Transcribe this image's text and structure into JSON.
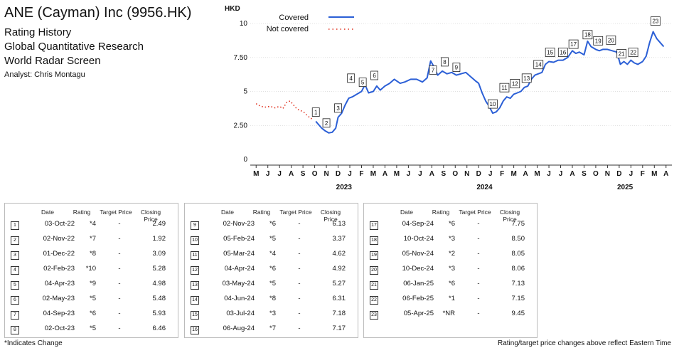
{
  "header": {
    "company": "ANE (Cayman) Inc (9956.HK)",
    "lines": [
      "Rating History",
      "Global Quantitative Research",
      "World Radar Screen"
    ],
    "analyst": "Analyst: Chris Montagu"
  },
  "chart_data": {
    "type": "line",
    "ylabel": "HKD",
    "ylim": [
      0,
      11
    ],
    "yticks": [
      {
        "value": 0,
        "label": "0"
      },
      {
        "value": 2.5,
        "label": "2.50"
      },
      {
        "value": 5,
        "label": "5"
      },
      {
        "value": 7.5,
        "label": "7.50"
      },
      {
        "value": 10,
        "label": "10"
      }
    ],
    "months": [
      "M",
      "J",
      "J",
      "A",
      "S",
      "O",
      "N",
      "D",
      "J",
      "F",
      "M",
      "A",
      "M",
      "J",
      "J",
      "A",
      "S",
      "O",
      "N",
      "D",
      "J",
      "F",
      "M",
      "A",
      "M",
      "J",
      "J",
      "A",
      "S",
      "O",
      "N",
      "D",
      "J",
      "F",
      "M",
      "A"
    ],
    "year_labels": [
      {
        "label": "2023",
        "month_index": 7.5
      },
      {
        "label": "2024",
        "month_index": 19.5
      },
      {
        "label": "2025",
        "month_index": 31.5
      }
    ],
    "colors": {
      "covered": "#2b5fd6",
      "not_covered": "#e0301e"
    },
    "legend": {
      "position": "top-center",
      "items": [
        {
          "name": "Covered",
          "style": "solid"
        },
        {
          "name": "Not covered",
          "style": "dotted"
        }
      ]
    },
    "series": [
      {
        "name": "Not covered",
        "points": [
          [
            0,
            4.1
          ],
          [
            0.4,
            3.9
          ],
          [
            0.8,
            3.85
          ],
          [
            1.2,
            3.9
          ],
          [
            1.6,
            3.8
          ],
          [
            2,
            3.9
          ],
          [
            2.3,
            3.75
          ],
          [
            2.6,
            4.2
          ],
          [
            2.9,
            4.3
          ],
          [
            3.2,
            4.0
          ],
          [
            3.5,
            3.7
          ],
          [
            3.8,
            3.6
          ],
          [
            4.1,
            3.45
          ],
          [
            4.4,
            3.2
          ],
          [
            4.7,
            3.0
          ],
          [
            4.9,
            3.2
          ],
          [
            5.1,
            3.2
          ]
        ]
      },
      {
        "name": "Covered",
        "points": [
          [
            5.1,
            2.8
          ],
          [
            5.3,
            2.6
          ],
          [
            5.6,
            2.3
          ],
          [
            5.9,
            2.1
          ],
          [
            6.2,
            1.95
          ],
          [
            6.5,
            2.0
          ],
          [
            6.8,
            2.3
          ],
          [
            7.0,
            3.1
          ],
          [
            7.3,
            3.4
          ],
          [
            7.6,
            4.0
          ],
          [
            7.9,
            4.5
          ],
          [
            8.2,
            4.6
          ],
          [
            8.6,
            4.8
          ],
          [
            9.0,
            5.0
          ],
          [
            9.3,
            5.5
          ],
          [
            9.6,
            4.9
          ],
          [
            10.0,
            5.0
          ],
          [
            10.3,
            5.4
          ],
          [
            10.6,
            5.1
          ],
          [
            11.0,
            5.4
          ],
          [
            11.4,
            5.6
          ],
          [
            11.8,
            5.9
          ],
          [
            12.3,
            5.6
          ],
          [
            12.7,
            5.7
          ],
          [
            13.2,
            5.9
          ],
          [
            13.7,
            5.9
          ],
          [
            14.2,
            5.7
          ],
          [
            14.6,
            6.0
          ],
          [
            14.9,
            7.25
          ],
          [
            15.2,
            6.8
          ],
          [
            15.5,
            6.2
          ],
          [
            15.9,
            6.5
          ],
          [
            16.3,
            6.3
          ],
          [
            16.7,
            6.4
          ],
          [
            17.1,
            6.2
          ],
          [
            17.5,
            6.3
          ],
          [
            17.9,
            6.4
          ],
          [
            18.3,
            6.1
          ],
          [
            18.7,
            5.8
          ],
          [
            19.0,
            5.6
          ],
          [
            19.3,
            4.9
          ],
          [
            19.6,
            4.3
          ],
          [
            19.9,
            3.9
          ],
          [
            20.2,
            3.4
          ],
          [
            20.5,
            3.5
          ],
          [
            20.8,
            3.8
          ],
          [
            21.1,
            4.3
          ],
          [
            21.4,
            4.6
          ],
          [
            21.7,
            4.5
          ],
          [
            22.0,
            4.8
          ],
          [
            22.3,
            4.9
          ],
          [
            22.6,
            5.0
          ],
          [
            22.9,
            5.3
          ],
          [
            23.2,
            5.4
          ],
          [
            23.5,
            5.9
          ],
          [
            23.8,
            6.2
          ],
          [
            24.1,
            6.3
          ],
          [
            24.4,
            6.4
          ],
          [
            24.7,
            7.0
          ],
          [
            25.0,
            7.2
          ],
          [
            25.4,
            7.15
          ],
          [
            25.8,
            7.3
          ],
          [
            26.2,
            7.3
          ],
          [
            26.6,
            7.5
          ],
          [
            27.0,
            8.0
          ],
          [
            27.3,
            7.8
          ],
          [
            27.6,
            7.9
          ],
          [
            28.0,
            7.7
          ],
          [
            28.3,
            8.7
          ],
          [
            28.6,
            8.3
          ],
          [
            29.0,
            8.1
          ],
          [
            29.3,
            8.0
          ],
          [
            29.6,
            8.1
          ],
          [
            30.0,
            8.1
          ],
          [
            30.4,
            8.0
          ],
          [
            30.8,
            7.9
          ],
          [
            31.1,
            7.0
          ],
          [
            31.4,
            7.2
          ],
          [
            31.7,
            7.0
          ],
          [
            32.0,
            7.3
          ],
          [
            32.3,
            7.1
          ],
          [
            32.6,
            7.0
          ],
          [
            33.0,
            7.2
          ],
          [
            33.3,
            7.6
          ],
          [
            33.6,
            8.6
          ],
          [
            33.9,
            9.4
          ],
          [
            34.2,
            8.9
          ],
          [
            34.5,
            8.6
          ],
          [
            34.8,
            8.3
          ]
        ]
      }
    ],
    "markers": [
      {
        "label": "1",
        "x": 5.1,
        "y": 2.8
      },
      {
        "label": "2",
        "x": 6.0,
        "y": 2.0
      },
      {
        "label": "3",
        "x": 7.0,
        "y": 3.1
      },
      {
        "label": "4",
        "x": 8.1,
        "y": 5.3
      },
      {
        "label": "5",
        "x": 9.1,
        "y": 5.0
      },
      {
        "label": "6",
        "x": 10.1,
        "y": 5.5
      },
      {
        "label": "7",
        "x": 15.1,
        "y": 5.9
      },
      {
        "label": "8",
        "x": 16.1,
        "y": 6.5
      },
      {
        "label": "9",
        "x": 17.1,
        "y": 6.1
      },
      {
        "label": "10",
        "x": 20.2,
        "y": 3.4
      },
      {
        "label": "11",
        "x": 21.2,
        "y": 4.6
      },
      {
        "label": "12",
        "x": 22.1,
        "y": 4.9
      },
      {
        "label": "13",
        "x": 23.1,
        "y": 5.3
      },
      {
        "label": "14",
        "x": 24.1,
        "y": 6.3
      },
      {
        "label": "15",
        "x": 25.1,
        "y": 7.2
      },
      {
        "label": "16",
        "x": 26.2,
        "y": 7.2
      },
      {
        "label": "17",
        "x": 27.1,
        "y": 7.8
      },
      {
        "label": "18",
        "x": 28.3,
        "y": 8.5
      },
      {
        "label": "19",
        "x": 29.2,
        "y": 8.05
      },
      {
        "label": "20",
        "x": 30.3,
        "y": 8.1
      },
      {
        "label": "21",
        "x": 31.2,
        "y": 7.1
      },
      {
        "label": "22",
        "x": 32.2,
        "y": 7.2
      },
      {
        "label": "23",
        "x": 34.1,
        "y": 9.5
      }
    ]
  },
  "tables": [
    {
      "headers": [
        "Date",
        "Rating",
        "Target Price",
        "Closing Price"
      ],
      "rows": [
        {
          "num": "1",
          "date": "03-Oct-22",
          "rating": "*4",
          "target": "-",
          "close": "2.49"
        },
        {
          "num": "2",
          "date": "02-Nov-22",
          "rating": "*7",
          "target": "-",
          "close": "1.92"
        },
        {
          "num": "3",
          "date": "01-Dec-22",
          "rating": "*8",
          "target": "-",
          "close": "3.09"
        },
        {
          "num": "4",
          "date": "02-Feb-23",
          "rating": "*10",
          "target": "-",
          "close": "5.28"
        },
        {
          "num": "5",
          "date": "04-Apr-23",
          "rating": "*9",
          "target": "-",
          "close": "4.98"
        },
        {
          "num": "6",
          "date": "02-May-23",
          "rating": "*5",
          "target": "-",
          "close": "5.48"
        },
        {
          "num": "7",
          "date": "04-Sep-23",
          "rating": "*6",
          "target": "-",
          "close": "5.93"
        },
        {
          "num": "8",
          "date": "02-Oct-23",
          "rating": "*5",
          "target": "-",
          "close": "6.46"
        }
      ]
    },
    {
      "headers": [
        "Date",
        "Rating",
        "Target Price",
        "Closing Price"
      ],
      "rows": [
        {
          "num": "9",
          "date": "02-Nov-23",
          "rating": "*6",
          "target": "-",
          "close": "6.13"
        },
        {
          "num": "10",
          "date": "05-Feb-24",
          "rating": "*5",
          "target": "-",
          "close": "3.37"
        },
        {
          "num": "11",
          "date": "05-Mar-24",
          "rating": "*4",
          "target": "-",
          "close": "4.62"
        },
        {
          "num": "12",
          "date": "04-Apr-24",
          "rating": "*6",
          "target": "-",
          "close": "4.92"
        },
        {
          "num": "13",
          "date": "03-May-24",
          "rating": "*5",
          "target": "-",
          "close": "5.27"
        },
        {
          "num": "14",
          "date": "04-Jun-24",
          "rating": "*8",
          "target": "-",
          "close": "6.31"
        },
        {
          "num": "15",
          "date": "03-Jul-24",
          "rating": "*3",
          "target": "-",
          "close": "7.18"
        },
        {
          "num": "16",
          "date": "06-Aug-24",
          "rating": "*7",
          "target": "-",
          "close": "7.17"
        }
      ]
    },
    {
      "headers": [
        "Date",
        "Rating",
        "Target Price",
        "Closing Price"
      ],
      "rows": [
        {
          "num": "17",
          "date": "04-Sep-24",
          "rating": "*6",
          "target": "-",
          "close": "7.75"
        },
        {
          "num": "18",
          "date": "10-Oct-24",
          "rating": "*3",
          "target": "-",
          "close": "8.50"
        },
        {
          "num": "19",
          "date": "05-Nov-24",
          "rating": "*2",
          "target": "-",
          "close": "8.05"
        },
        {
          "num": "20",
          "date": "10-Dec-24",
          "rating": "*3",
          "target": "-",
          "close": "8.06"
        },
        {
          "num": "21",
          "date": "06-Jan-25",
          "rating": "*6",
          "target": "-",
          "close": "7.13"
        },
        {
          "num": "22",
          "date": "06-Feb-25",
          "rating": "*1",
          "target": "-",
          "close": "7.15"
        },
        {
          "num": "23",
          "date": "05-Apr-25",
          "rating": "*NR",
          "target": "-",
          "close": "9.45"
        }
      ]
    }
  ],
  "footer": {
    "left": "*Indicates Change",
    "right": "Rating/target price changes above reflect Eastern Time"
  }
}
